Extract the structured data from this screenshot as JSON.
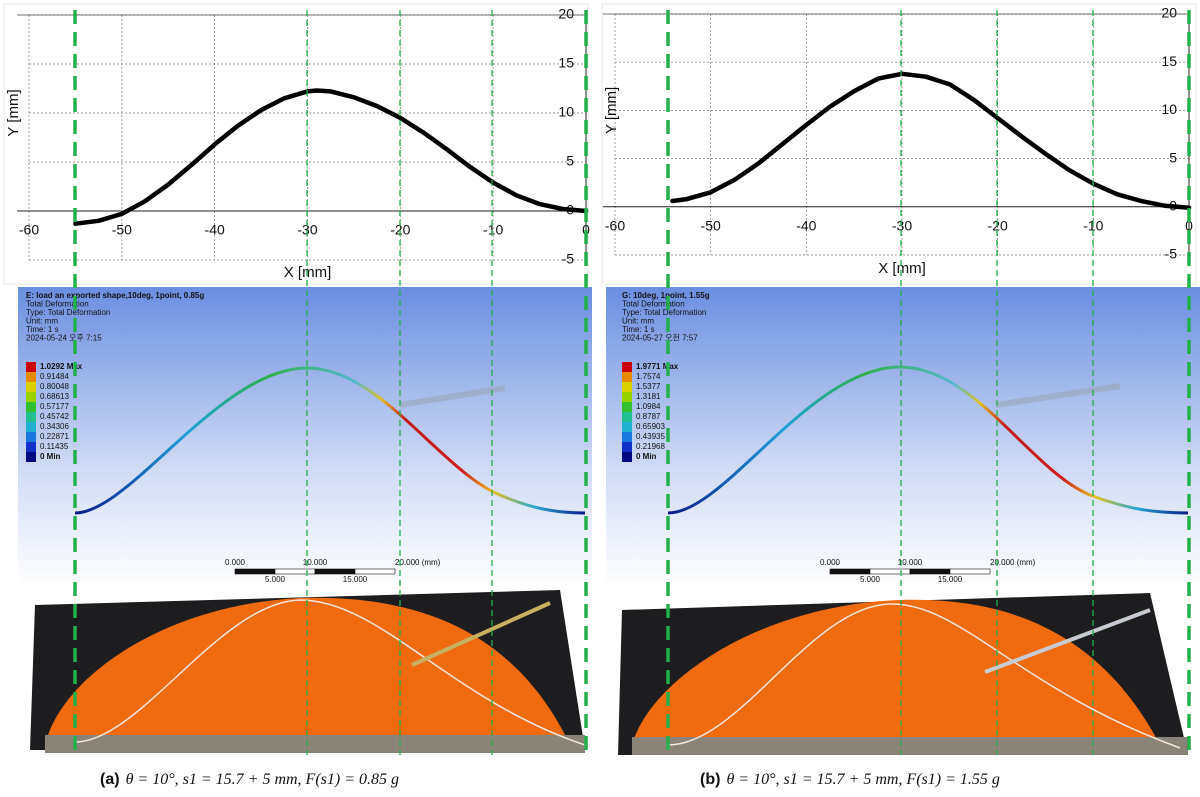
{
  "chart_data": [
    {
      "type": "line",
      "xlabel": "X [mm]",
      "ylabel": "Y [mm]",
      "xlim": [
        -60,
        0
      ],
      "ylim": [
        -5,
        20
      ],
      "xticks": [
        -60,
        -50,
        -40,
        -30,
        -20,
        -10,
        0
      ],
      "yticks": [
        -5,
        0,
        5,
        10,
        15,
        20
      ],
      "grid": true,
      "series": [
        {
          "color": "#000000",
          "x": [
            -55,
            -52.5,
            -50,
            -47.5,
            -45,
            -42.5,
            -40,
            -37.5,
            -35,
            -32.5,
            -30,
            -29,
            -27.5,
            -25,
            -22.5,
            -20,
            -17.5,
            -15,
            -12.5,
            -10,
            -7.5,
            -5,
            -2.5,
            0
          ],
          "values": [
            -1.3,
            -1.0,
            -0.3,
            1.0,
            2.7,
            4.7,
            6.8,
            8.7,
            10.3,
            11.5,
            12.2,
            12.3,
            12.2,
            11.6,
            10.7,
            9.5,
            8.0,
            6.3,
            4.5,
            2.9,
            1.6,
            0.7,
            0.2,
            0
          ]
        }
      ]
    },
    {
      "type": "line",
      "xlabel": "X [mm]",
      "ylabel": "Y [mm]",
      "xlim": [
        -60,
        0
      ],
      "ylim": [
        -5,
        20
      ],
      "xticks": [
        -60,
        -50,
        -40,
        -30,
        -20,
        -10,
        0
      ],
      "yticks": [
        -5,
        0,
        5,
        10,
        15,
        20
      ],
      "grid": true,
      "series": [
        {
          "color": "#000000",
          "x": [
            -54,
            -52.5,
            -50,
            -47.5,
            -45,
            -42.5,
            -40,
            -37.5,
            -35,
            -32.5,
            -30,
            -27.5,
            -25,
            -22.5,
            -20,
            -17.5,
            -15,
            -12.5,
            -10,
            -7.5,
            -5,
            -2.5,
            0
          ],
          "values": [
            0.6,
            0.8,
            1.5,
            2.8,
            4.5,
            6.5,
            8.5,
            10.4,
            12.0,
            13.3,
            13.8,
            13.5,
            12.7,
            11.1,
            9.2,
            7.3,
            5.5,
            3.8,
            2.4,
            1.3,
            0.6,
            0.1,
            -0.1
          ]
        }
      ]
    }
  ],
  "panels": [
    {
      "simulation": {
        "header": [
          "E: load an exported shape,10deg, 1point, 0.85g",
          "Total Deformation",
          "Type: Total Deformation",
          "Unit: mm",
          "Time: 1 s",
          "2024-05-24 오후 7:15"
        ],
        "legend": [
          "1.0292 Max",
          "0.91484",
          "0.80048",
          "0.68613",
          "0.57177",
          "0.45742",
          "0.34306",
          "0.22871",
          "0.11435",
          "0 Min"
        ],
        "scale_top": [
          "0.000",
          "10.000",
          "20.000 (mm)"
        ],
        "scale_bottom": [
          "5.000",
          "15.000"
        ]
      },
      "caption": {
        "label": "(a)",
        "text": "θ = 10°, s1 = 15.7 + 5 mm, F(s1) = 0.85 g"
      }
    },
    {
      "simulation": {
        "header": [
          "G: 10deg, 1point, 1.55g",
          "Total Deformation",
          "Type: Total Deformation",
          "Unit: mm",
          "Time: 1 s",
          "2024-05-27 오전 7:57"
        ],
        "legend": [
          "1.9771 Max",
          "1.7574",
          "1.5377",
          "1.3181",
          "1.0984",
          "0.8787",
          "0.65903",
          "0.43935",
          "0.21968",
          "0 Min"
        ],
        "scale_top": [
          "0.000",
          "10.000",
          "20.000 (mm)"
        ],
        "scale_bottom": [
          "5.000",
          "15.000"
        ]
      },
      "caption": {
        "label": "(b)",
        "text": "θ = 10°, s1 = 15.7 + 5 mm, F(s1) = 1.55 g"
      }
    }
  ]
}
